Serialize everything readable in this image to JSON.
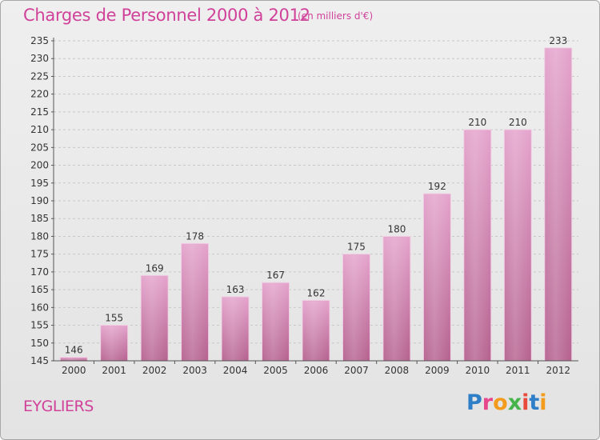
{
  "header": {
    "title": "Charges de Personnel 2000 à 2012",
    "subtitle": "(en milliers d'€)"
  },
  "footer": {
    "commune": "EYGLIERS",
    "logo_text": "Proxiti",
    "logo_colors": [
      "#2f7ec8",
      "#e8468c",
      "#f39b1d",
      "#47b34b",
      "#e84a3c",
      "#2f7ec8",
      "#f39b1d"
    ]
  },
  "colors": {
    "bar_top": "#e4a3cc",
    "bar_bottom": "#b5628f",
    "grid": "#c8c8c8",
    "axis": "#555555"
  },
  "chart_data": {
    "type": "bar",
    "title": "Charges de Personnel 2000 à 2012",
    "subtitle": "(en milliers d'€)",
    "categories": [
      "2000",
      "2001",
      "2002",
      "2003",
      "2004",
      "2005",
      "2006",
      "2007",
      "2008",
      "2009",
      "2010",
      "2011",
      "2012"
    ],
    "values": [
      146,
      155,
      169,
      178,
      163,
      167,
      162,
      175,
      180,
      192,
      210,
      210,
      233
    ],
    "ylim": [
      145,
      235
    ],
    "yticks": [
      145,
      150,
      155,
      160,
      165,
      170,
      175,
      180,
      185,
      190,
      195,
      200,
      205,
      210,
      215,
      220,
      225,
      230,
      235
    ],
    "grid": true,
    "data_labels": true
  }
}
